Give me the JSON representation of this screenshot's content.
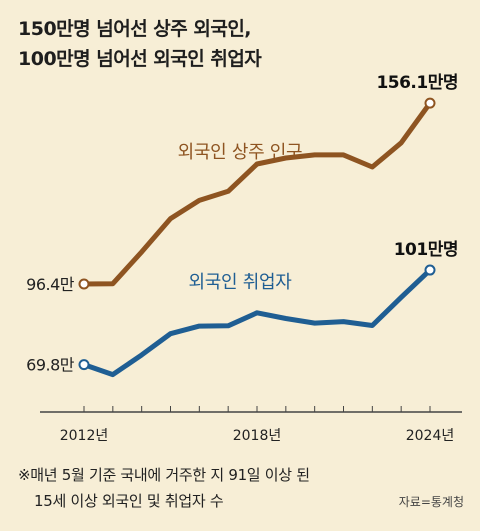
{
  "title_lines": [
    "150만명 넘어선 상주 외국인,",
    "100만명 넘어선 외국인 취업자"
  ],
  "footnote": [
    "※매년 5월 기준 국내에 거주한 지 91일 이상 된",
    "15세 이상 외국인 및 취업자 수"
  ],
  "source": "자료=통계청",
  "colors": {
    "resident": "#8e5421",
    "employed": "#1f5e93",
    "background": "#f7eed6",
    "axis": "#444444"
  },
  "chart_data": {
    "type": "line",
    "title": "150만명 넘어선 상주 외국인, 100만명 넘어선 외국인 취업자",
    "xlabel": "",
    "ylabel": "",
    "x": [
      2012,
      2013,
      2014,
      2015,
      2016,
      2017,
      2018,
      2019,
      2020,
      2021,
      2022,
      2023,
      2024
    ],
    "x_tick_labels": [
      {
        "x": 2012,
        "label": "2012년"
      },
      {
        "x": 2018,
        "label": "2018년"
      },
      {
        "x": 2024,
        "label": "2024년"
      }
    ],
    "ylim": [
      45,
      175
    ],
    "grid": false,
    "legend": "inline labels",
    "series": [
      {
        "name": "외국인 상주 인구",
        "values": [
          96.4,
          96.5,
          107.0,
          118.0,
          124.0,
          127.0,
          136.0,
          138.0,
          139.0,
          139.0,
          135.0,
          143.0,
          156.1
        ],
        "start_label": "96.4만",
        "end_label": "156.1만명"
      },
      {
        "name": "외국인 취업자",
        "values": [
          69.8,
          66.5,
          73.0,
          80.0,
          82.5,
          82.6,
          86.9,
          85.0,
          83.5,
          84.0,
          82.7,
          92.0,
          101.0
        ],
        "start_label": "69.8만",
        "end_label": "101만명"
      }
    ]
  }
}
